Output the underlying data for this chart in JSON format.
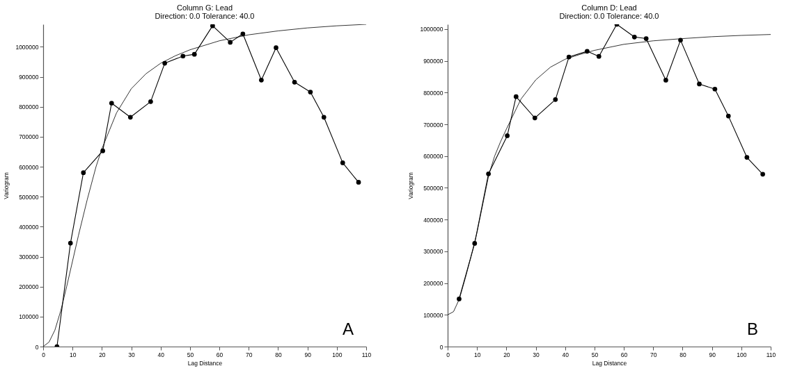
{
  "chart_data": [
    {
      "type": "line",
      "title": "Column G:  Lead",
      "subtitle": "Direction: 0.0   Tolerance: 40.0",
      "xlabel": "Lag Distance",
      "ylabel": "Variogram",
      "xlim": [
        0,
        110
      ],
      "xticks": [
        0,
        10,
        20,
        30,
        40,
        50,
        60,
        70,
        80,
        90,
        100,
        110
      ],
      "ylim": [
        0,
        1075000
      ],
      "yticks": [
        0,
        100000,
        200000,
        300000,
        400000,
        500000,
        600000,
        700000,
        800000,
        900000,
        1000000
      ],
      "grid": false,
      "annotations": [
        "A"
      ],
      "series": [
        {
          "marker": "circle",
          "color": "#000000",
          "x": [
            4.7,
            9.3,
            13.7,
            20.3,
            23.3,
            29.7,
            36.6,
            41.4,
            47.6,
            51.5,
            57.7,
            63.7,
            68.0,
            74.3,
            79.3,
            85.6,
            91.0,
            95.6,
            102.0,
            107.4
          ],
          "values": [
            0,
            345000,
            580000,
            653000,
            812000,
            765000,
            817000,
            945000,
            969000,
            975000,
            1070000,
            1015000,
            1043000,
            889000,
            997000,
            882000,
            849000,
            765000,
            613000,
            548000
          ]
        },
        {
          "marker": "none",
          "color": "#000000",
          "x": [
            0,
            2,
            4,
            6,
            8,
            10,
            12,
            15,
            18,
            20,
            25,
            30,
            35,
            40,
            45,
            50,
            60,
            70,
            80,
            90,
            100,
            110
          ],
          "values": [
            0,
            15000,
            55000,
            120000,
            200000,
            285000,
            370000,
            490000,
            600000,
            660000,
            780000,
            860000,
            910000,
            945000,
            970000,
            990000,
            1020000,
            1040000,
            1053000,
            1063000,
            1070000,
            1075000
          ]
        }
      ]
    },
    {
      "type": "line",
      "title": "Column D:  Lead",
      "subtitle": "Direction: 0.0   Tolerance: 40.0",
      "xlabel": "Lag Distance",
      "ylabel": "Variogram",
      "xlim": [
        0,
        110
      ],
      "xticks": [
        0,
        10,
        20,
        30,
        40,
        50,
        60,
        70,
        80,
        90,
        100,
        110
      ],
      "ylim": [
        0,
        1015000
      ],
      "yticks": [
        0,
        100000,
        200000,
        300000,
        400000,
        500000,
        600000,
        700000,
        800000,
        900000,
        1000000
      ],
      "grid": false,
      "annotations": [
        "B"
      ],
      "series": [
        {
          "marker": "circle",
          "color": "#000000",
          "x": [
            3.9,
            9.2,
            13.9,
            20.3,
            23.3,
            29.7,
            36.7,
            41.3,
            47.5,
            51.5,
            57.6,
            63.6,
            67.6,
            74.3,
            79.3,
            85.7,
            91.0,
            95.6,
            101.9,
            107.3
          ],
          "values": [
            150000,
            325000,
            544000,
            664000,
            787000,
            720000,
            778000,
            912000,
            930000,
            914000,
            1015000,
            975000,
            970000,
            839000,
            965000,
            827000,
            811000,
            726000,
            596000,
            543000
          ]
        },
        {
          "marker": "none",
          "color": "#000000",
          "x": [
            0,
            2,
            4,
            6,
            8,
            10,
            12,
            14,
            16,
            18,
            20,
            25,
            30,
            35,
            40,
            45,
            50,
            60,
            70,
            80,
            90,
            100,
            110
          ],
          "values": [
            100000,
            110000,
            150000,
            215000,
            285000,
            360000,
            450000,
            540000,
            600000,
            645000,
            685000,
            780000,
            840000,
            880000,
            905000,
            920000,
            933000,
            952000,
            963000,
            970000,
            976000,
            980000,
            983000
          ]
        }
      ]
    }
  ]
}
